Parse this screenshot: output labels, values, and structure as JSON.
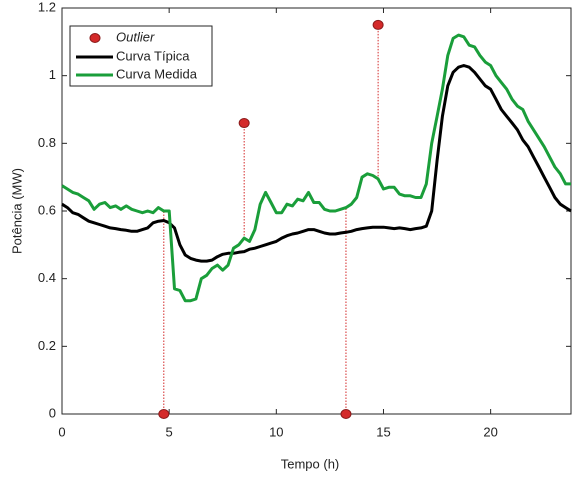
{
  "chart_data": {
    "type": "line",
    "xlabel": "Tempo (h)",
    "ylabel": "Potência (MW)",
    "xlim": [
      0,
      23.75
    ],
    "ylim": [
      0,
      1.2
    ],
    "xticks": [
      0,
      5,
      10,
      15,
      20
    ],
    "yticks": [
      0,
      0.2,
      0.4,
      0.6,
      0.8,
      1,
      1.2
    ],
    "legend": "upper left",
    "x": [
      0,
      0.25,
      0.5,
      0.75,
      1,
      1.25,
      1.5,
      1.75,
      2,
      2.25,
      2.5,
      2.75,
      3,
      3.25,
      3.5,
      3.75,
      4,
      4.25,
      4.5,
      4.75,
      5,
      5.25,
      5.5,
      5.75,
      6,
      6.25,
      6.5,
      6.75,
      7,
      7.25,
      7.5,
      7.75,
      8,
      8.25,
      8.5,
      8.75,
      9,
      9.25,
      9.5,
      9.75,
      10,
      10.25,
      10.5,
      10.75,
      11,
      11.25,
      11.5,
      11.75,
      12,
      12.25,
      12.5,
      12.75,
      13,
      13.25,
      13.5,
      13.75,
      14,
      14.25,
      14.5,
      14.75,
      15,
      15.25,
      15.5,
      15.75,
      16,
      16.25,
      16.5,
      16.75,
      17,
      17.25,
      17.5,
      17.75,
      18,
      18.25,
      18.5,
      18.75,
      19,
      19.25,
      19.5,
      19.75,
      20,
      20.25,
      20.5,
      20.75,
      21,
      21.25,
      21.5,
      21.75,
      22,
      22.25,
      22.5,
      22.75,
      23,
      23.25,
      23.5,
      23.75
    ],
    "series": [
      {
        "name": "Curva Típica",
        "color": "#000000",
        "values": [
          0.62,
          0.61,
          0.595,
          0.59,
          0.58,
          0.57,
          0.565,
          0.56,
          0.555,
          0.55,
          0.548,
          0.545,
          0.543,
          0.54,
          0.54,
          0.545,
          0.55,
          0.565,
          0.57,
          0.572,
          0.565,
          0.55,
          0.5,
          0.47,
          0.46,
          0.455,
          0.452,
          0.452,
          0.455,
          0.465,
          0.472,
          0.475,
          0.475,
          0.478,
          0.48,
          0.487,
          0.49,
          0.495,
          0.5,
          0.505,
          0.51,
          0.52,
          0.527,
          0.532,
          0.535,
          0.54,
          0.545,
          0.545,
          0.54,
          0.535,
          0.532,
          0.532,
          0.535,
          0.537,
          0.54,
          0.545,
          0.548,
          0.55,
          0.552,
          0.552,
          0.552,
          0.55,
          0.548,
          0.55,
          0.548,
          0.545,
          0.548,
          0.55,
          0.555,
          0.6,
          0.75,
          0.88,
          0.97,
          1.01,
          1.025,
          1.03,
          1.025,
          1.01,
          0.99,
          0.97,
          0.96,
          0.93,
          0.9,
          0.88,
          0.86,
          0.84,
          0.81,
          0.79,
          0.76,
          0.73,
          0.7,
          0.67,
          0.64,
          0.62,
          0.61,
          0.6
        ]
      },
      {
        "name": "Curva Medida",
        "color": "#1a9e3a",
        "values": [
          0.675,
          0.665,
          0.655,
          0.65,
          0.64,
          0.63,
          0.605,
          0.62,
          0.625,
          0.61,
          0.615,
          0.605,
          0.615,
          0.605,
          0.6,
          0.595,
          0.6,
          0.595,
          0.61,
          0.6,
          0.6,
          0.37,
          0.365,
          0.335,
          0.335,
          0.34,
          0.4,
          0.41,
          0.43,
          0.44,
          0.425,
          0.44,
          0.49,
          0.5,
          0.52,
          0.51,
          0.545,
          0.62,
          0.655,
          0.625,
          0.595,
          0.595,
          0.62,
          0.615,
          0.635,
          0.63,
          0.655,
          0.625,
          0.625,
          0.605,
          0.6,
          0.6,
          0.605,
          0.61,
          0.62,
          0.64,
          0.7,
          0.71,
          0.705,
          0.695,
          0.665,
          0.67,
          0.67,
          0.65,
          0.645,
          0.645,
          0.64,
          0.64,
          0.68,
          0.8,
          0.88,
          0.96,
          1.06,
          1.11,
          1.12,
          1.115,
          1.09,
          1.085,
          1.06,
          1.04,
          1.03,
          1.0,
          0.98,
          0.96,
          0.93,
          0.91,
          0.9,
          0.865,
          0.84,
          0.815,
          0.79,
          0.76,
          0.73,
          0.71,
          0.68,
          0.68
        ]
      }
    ],
    "outliers": {
      "name": "Outlier",
      "color": "#d42a2a",
      "x": [
        4.75,
        8.5,
        13.25,
        14.75
      ],
      "values": [
        0,
        0.86,
        0,
        1.15
      ]
    }
  }
}
